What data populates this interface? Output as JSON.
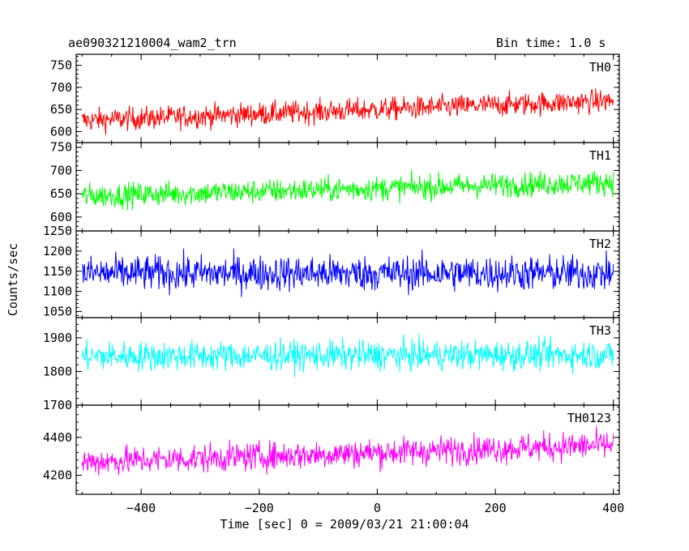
{
  "header": {
    "title": "ae090321210004_wam2_trn",
    "bin_time": "Bin time: 1.0 s"
  },
  "chart_data": {
    "type": "line",
    "xlabel": "Time [sec] 0 = 2009/03/21 21:00:04",
    "ylabel": "Counts/sec",
    "xlim": [
      -510,
      410
    ],
    "x_range": [
      -500,
      400
    ],
    "x_step": 1.0,
    "xticks": [
      -400,
      -200,
      0,
      200,
      400
    ],
    "xtick_labels": [
      "−400",
      "−200",
      "0",
      "200",
      "400"
    ],
    "panels": [
      {
        "name": "TH0",
        "color": "#ff0000",
        "ylim": [
          575,
          775
        ],
        "yticks": [
          600,
          650,
          700,
          750
        ],
        "trend": [
          -500,
          625,
          400,
          670
        ],
        "noise_amplitude": 45
      },
      {
        "name": "TH1",
        "color": "#00ff00",
        "ylim": [
          570,
          760
        ],
        "yticks": [
          600,
          650,
          700,
          750
        ],
        "trend": [
          -500,
          645,
          400,
          675
        ],
        "noise_amplitude": 45
      },
      {
        "name": "TH2",
        "color": "#0000ff",
        "ylim": [
          1035,
          1250
        ],
        "yticks": [
          1050,
          1100,
          1150,
          1200,
          1250
        ],
        "trend": [
          -500,
          1145,
          400,
          1145
        ],
        "noise_amplitude": 75
      },
      {
        "name": "TH3",
        "color": "#00ffff",
        "ylim": [
          1700,
          1960
        ],
        "yticks": [
          1700,
          1800,
          1900
        ],
        "trend": [
          -500,
          1845,
          400,
          1850
        ],
        "noise_amplitude": 75
      },
      {
        "name": "TH0123",
        "color": "#ff00ff",
        "ylim": [
          4100,
          4570
        ],
        "yticks": [
          4200,
          4400
        ],
        "trend": [
          -500,
          4270,
          400,
          4360
        ],
        "noise_amplitude": 130
      }
    ]
  }
}
